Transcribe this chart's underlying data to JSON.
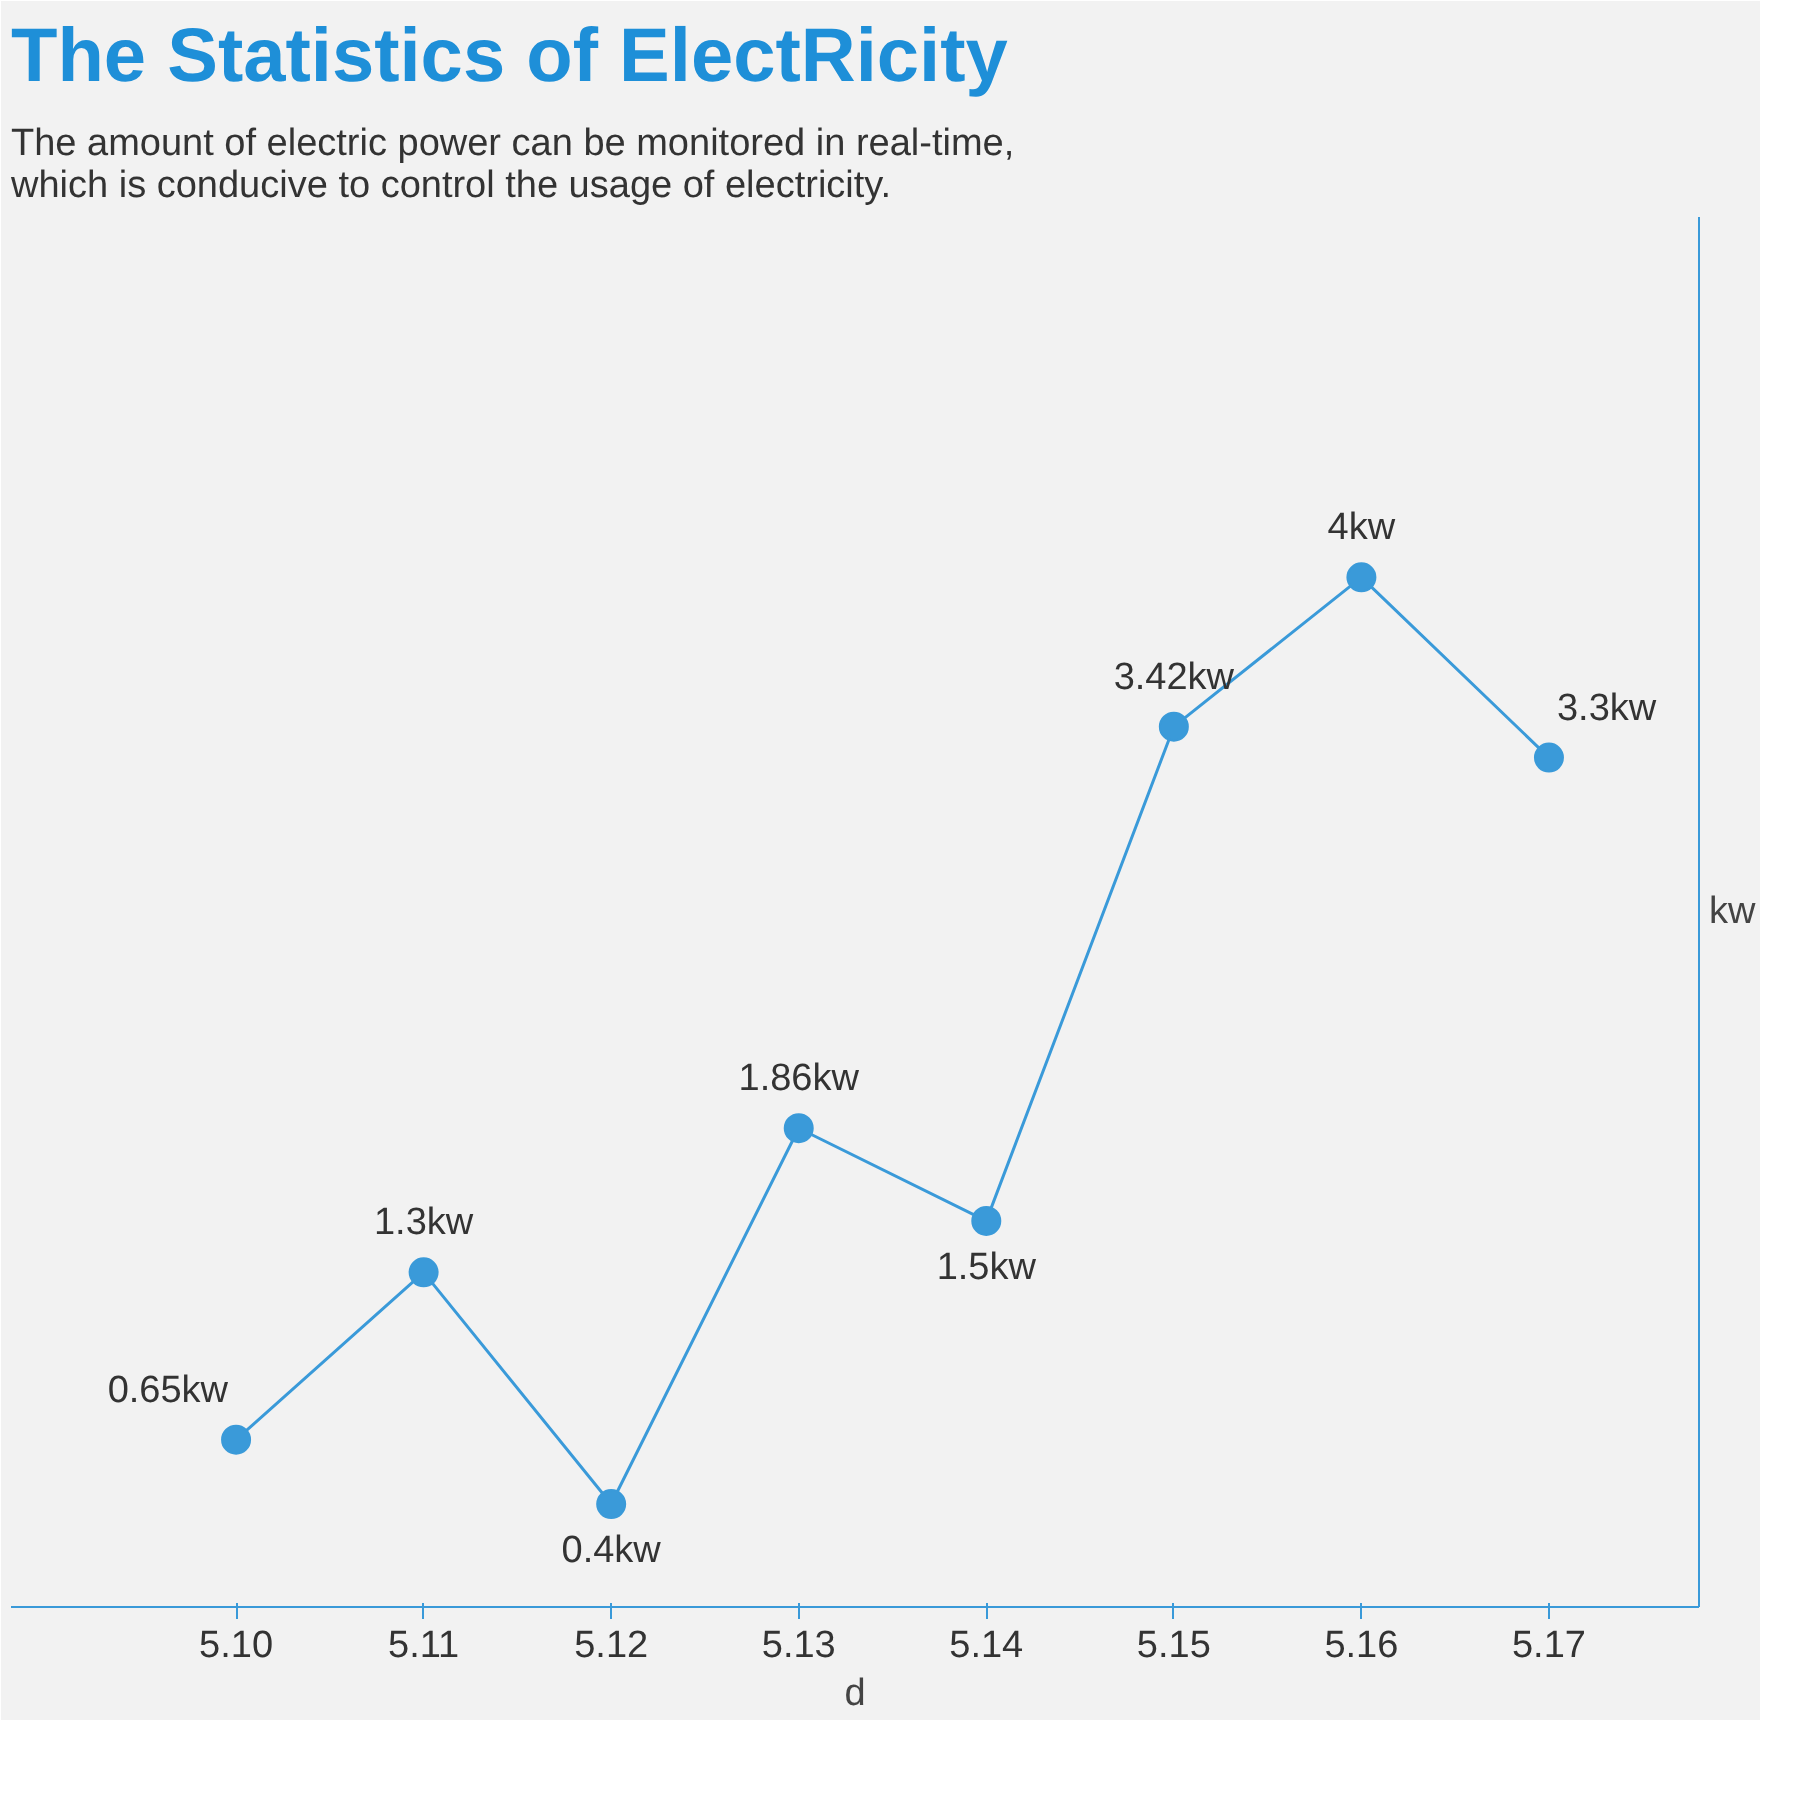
{
  "chart_data": {
    "type": "line",
    "title": "The Statistics of ElectRicity",
    "subtitle": "The amount of electric power can be monitored in real-time,\nwhich is conducive to control the usage of electricity.",
    "xlabel": "d",
    "ylabel": "kw",
    "categories": [
      "5.10",
      "5.11",
      "5.12",
      "5.13",
      "5.14",
      "5.15",
      "5.16",
      "5.17"
    ],
    "series": [
      {
        "color": "#3a9ad9",
        "values": [
          0.65,
          1.3,
          0.4,
          1.86,
          1.5,
          3.42,
          4,
          3.3
        ],
        "value_labels": [
          "0.65kw",
          "1.3kw",
          "0.4kw",
          "1.86kw",
          "1.5kw",
          "3.42kw",
          "4kw",
          "3.3kw"
        ]
      }
    ],
    "marker": "circle",
    "line_style": "solid",
    "grid": false,
    "tick_labels": "x"
  }
}
